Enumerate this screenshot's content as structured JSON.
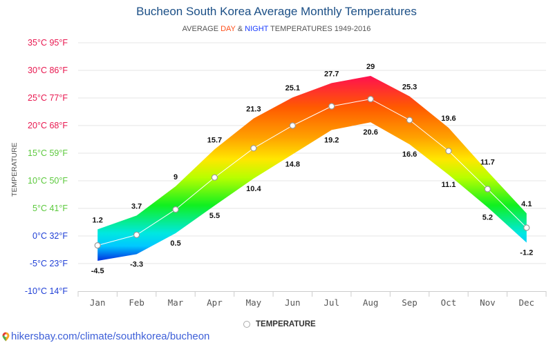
{
  "title": "Bucheon South Korea Average Monthly Temperatures",
  "subtitle": {
    "prefix": "AVERAGE ",
    "day": "DAY",
    "amp": " & ",
    "night": "NIGHT",
    "suffix": " TEMPERATURES 1949-2016"
  },
  "legend": {
    "label": "TEMPERATURE"
  },
  "source": {
    "text": "hikersbay.com/climate/southkorea/bucheon",
    "icon": "map-pin-icon"
  },
  "colors": {
    "title": "#1b4f86",
    "day": "#ff4f1a",
    "night": "#1a3cff",
    "warm_tick": "#e8174f",
    "mild_tick": "#5cc93d",
    "cold_tick": "#1f3fd6"
  },
  "chart_data": {
    "type": "area",
    "title": "Bucheon South Korea Average Monthly Temperatures",
    "subtitle": "AVERAGE DAY & NIGHT TEMPERATURES 1949-2016",
    "xlabel": "",
    "ylabel": "TEMPERATURE",
    "categories": [
      "Jan",
      "Feb",
      "Mar",
      "Apr",
      "May",
      "Jun",
      "Jul",
      "Aug",
      "Sep",
      "Oct",
      "Nov",
      "Dec"
    ],
    "series": [
      {
        "name": "Day (max)",
        "values": [
          1.2,
          3.7,
          9,
          15.7,
          21.3,
          25.1,
          27.7,
          29,
          25.3,
          19.6,
          11.7,
          4.1
        ]
      },
      {
        "name": "Night (min)",
        "values": [
          -4.5,
          -3.3,
          0.5,
          5.5,
          10.4,
          14.8,
          19.2,
          20.6,
          16.6,
          11.1,
          5.2,
          -1.2
        ]
      },
      {
        "name": "TEMPERATURE",
        "values": [
          -1.7,
          0.2,
          4.8,
          10.6,
          15.9,
          20.0,
          23.5,
          24.8,
          21.0,
          15.4,
          8.5,
          1.5
        ]
      }
    ],
    "yticks": [
      {
        "value": 35,
        "label": "35°C 95°F",
        "tone": "warm"
      },
      {
        "value": 30,
        "label": "30°C 86°F",
        "tone": "warm"
      },
      {
        "value": 25,
        "label": "25°C 77°F",
        "tone": "warm"
      },
      {
        "value": 20,
        "label": "20°C 68°F",
        "tone": "warm"
      },
      {
        "value": 15,
        "label": "15°C 59°F",
        "tone": "mild"
      },
      {
        "value": 10,
        "label": "10°C 50°F",
        "tone": "mild"
      },
      {
        "value": 5,
        "label": "5°C 41°F",
        "tone": "mild"
      },
      {
        "value": 0,
        "label": "0°C 32°F",
        "tone": "cold"
      },
      {
        "value": -5,
        "label": "-5°C 23°F",
        "tone": "cold"
      },
      {
        "value": -10,
        "label": "-10°C 14°F",
        "tone": "cold"
      }
    ],
    "ylim": [
      -10,
      35
    ],
    "grid": true,
    "legend_position": "bottom-center"
  }
}
